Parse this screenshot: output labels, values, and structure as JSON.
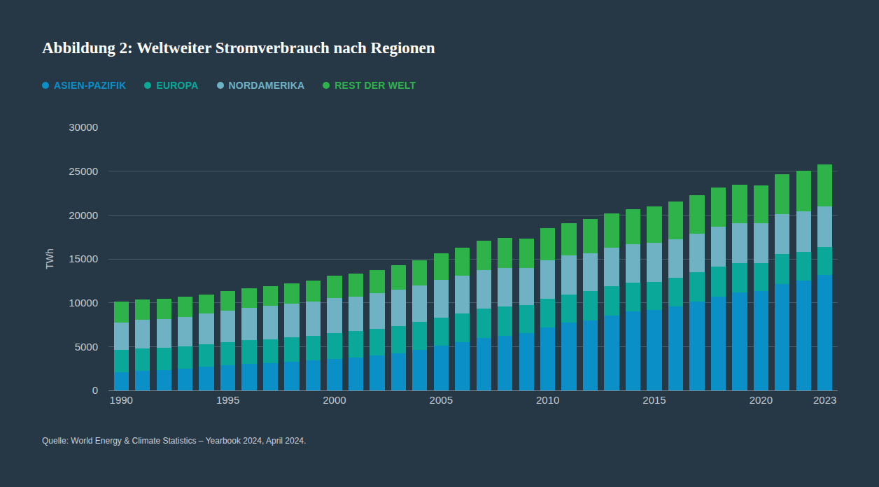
{
  "chart_data": {
    "type": "bar",
    "stacked": true,
    "title": "Abbildung 2: Weltweiter Stromverbrauch nach Regionen",
    "y_label": "TWh",
    "source": "Quelle: World Energy & Climate Statistics – Yearbook 2024, April 2024.",
    "grid": true,
    "categories": [
      "1990",
      null,
      null,
      null,
      null,
      "1995",
      null,
      null,
      null,
      null,
      "2000",
      null,
      null,
      null,
      null,
      "2005",
      null,
      null,
      null,
      null,
      "2010",
      null,
      null,
      null,
      null,
      "2015",
      null,
      null,
      null,
      null,
      "2020",
      null,
      null,
      "2023"
    ],
    "ylim": [
      0,
      30000
    ],
    "yticks": [
      0,
      5000,
      10000,
      15000,
      20000,
      25000,
      30000
    ],
    "series": [
      {
        "name": "ASIEN-PAZIFIK",
        "color": "#0a8fc6",
        "values": [
          2100,
          2250,
          2350,
          2500,
          2750,
          2900,
          3050,
          3150,
          3250,
          3400,
          3600,
          3750,
          3950,
          4250,
          4650,
          5100,
          5500,
          6000,
          6250,
          6550,
          7150,
          7700,
          8000,
          8550,
          9000,
          9150,
          9550,
          10100,
          10700,
          11200,
          11300,
          12150,
          12500,
          13150
        ]
      },
      {
        "name": "EUROPA",
        "color": "#0aa898",
        "values": [
          2550,
          2550,
          2500,
          2500,
          2500,
          2600,
          2700,
          2700,
          2800,
          2800,
          2950,
          3000,
          3050,
          3100,
          3150,
          3200,
          3300,
          3350,
          3350,
          3150,
          3300,
          3250,
          3300,
          3300,
          3250,
          3250,
          3300,
          3400,
          3450,
          3350,
          3250,
          3400,
          3300,
          3200
        ]
      },
      {
        "name": "NORDAMERIKA",
        "color": "#6eb2c4",
        "values": [
          3100,
          3250,
          3300,
          3400,
          3500,
          3600,
          3650,
          3800,
          3850,
          3900,
          3950,
          3950,
          4100,
          4100,
          4200,
          4300,
          4300,
          4400,
          4400,
          4250,
          4400,
          4450,
          4350,
          4400,
          4400,
          4400,
          4400,
          4400,
          4550,
          4550,
          4500,
          4550,
          4650,
          4650
        ]
      },
      {
        "name": "REST DER WELT",
        "color": "#2eb34b",
        "values": [
          2350,
          2350,
          2300,
          2300,
          2200,
          2200,
          2250,
          2250,
          2300,
          2450,
          2550,
          2600,
          2600,
          2800,
          2850,
          3000,
          3150,
          3300,
          3400,
          3350,
          3650,
          3700,
          3900,
          3950,
          4000,
          4150,
          4300,
          4350,
          4400,
          4350,
          4350,
          4550,
          4600,
          4750
        ]
      }
    ]
  }
}
